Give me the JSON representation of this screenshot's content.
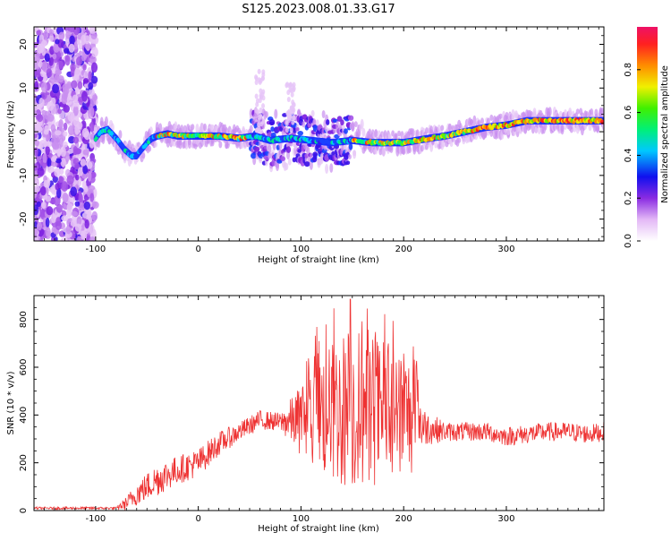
{
  "title": "S125.2023.008.01.33.G17",
  "chart_data": [
    {
      "type": "heatmap",
      "xlabel": "Height of straight line (km)",
      "ylabel": "Frequency (Hz)",
      "xlim": [
        -160,
        395
      ],
      "ylim": [
        -25,
        24
      ],
      "xticks": [
        -100,
        0,
        100,
        200,
        300
      ],
      "yticks": [
        -20,
        -10,
        0,
        10,
        20
      ],
      "grid": false,
      "colorbar": {
        "label": "Normalized spectral amplitude",
        "ticks": [
          0.0,
          0.2,
          0.4,
          0.6,
          0.8
        ],
        "tick_labels": [
          "0.0",
          "0.2",
          "0.4",
          "0.6",
          "0.8"
        ],
        "range": [
          0,
          1
        ]
      },
      "ridge": {
        "x": [
          -100,
          -95,
          -88,
          -80,
          -72,
          -65,
          -60,
          -55,
          -50,
          -45,
          -40,
          -30,
          -20,
          -10,
          0,
          20,
          40,
          55,
          70,
          90,
          110,
          130,
          150,
          170,
          200,
          225,
          240,
          260,
          280,
          300,
          320,
          340,
          360,
          395
        ],
        "y": [
          -1.5,
          0,
          0.5,
          -1.5,
          -4,
          -5.5,
          -5.5,
          -4,
          -2.5,
          -1.5,
          -1,
          -0.5,
          -1,
          -1,
          -1,
          -1,
          -1.5,
          -1,
          -2,
          -1.5,
          -2,
          -2.5,
          -2,
          -2.5,
          -2.5,
          -1.5,
          -1,
          0,
          1,
          1.5,
          2.5,
          2.5,
          2.5,
          2.5
        ]
      }
    },
    {
      "type": "line",
      "xlabel": "Height of straight line (km)",
      "ylabel": "SNR (10 * v/v)",
      "xlim": [
        -160,
        395
      ],
      "ylim": [
        0,
        900
      ],
      "xticks": [
        -100,
        0,
        100,
        200,
        300
      ],
      "yticks": [
        0,
        200,
        400,
        600,
        800
      ],
      "grid": false,
      "series": [
        {
          "color": "#ee3333",
          "envelope_x": [
            -160,
            -80,
            -70,
            -60,
            -40,
            -20,
            0,
            20,
            40,
            60,
            80,
            100,
            110,
            130,
            150,
            170,
            190,
            210,
            220,
            240,
            260,
            280,
            300,
            320,
            340,
            360,
            380,
            395
          ],
          "envelope_y": [
            10,
            10,
            30,
            70,
            130,
            170,
            200,
            280,
            330,
            380,
            370,
            380,
            400,
            420,
            430,
            420,
            400,
            400,
            350,
            330,
            330,
            330,
            310,
            320,
            330,
            330,
            320,
            330
          ],
          "amplitude": [
            5,
            5,
            30,
            50,
            70,
            60,
            60,
            50,
            40,
            40,
            40,
            150,
            250,
            300,
            350,
            320,
            300,
            250,
            80,
            40,
            40,
            40,
            40,
            40,
            40,
            40,
            40,
            40
          ],
          "peak": {
            "x": 148,
            "y": 885
          }
        }
      ]
    }
  ]
}
